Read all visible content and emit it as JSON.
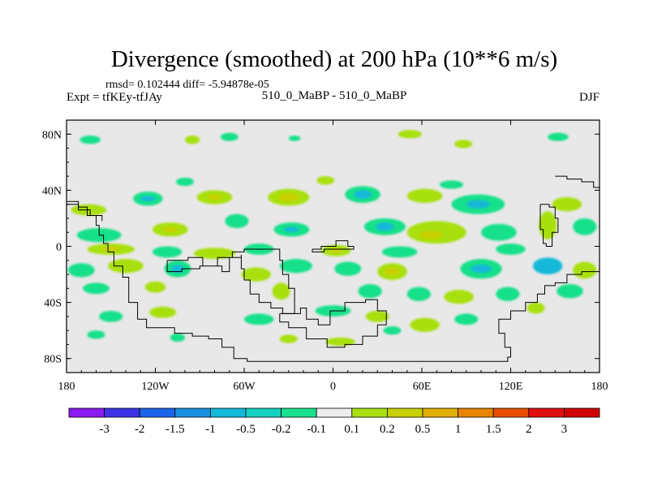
{
  "chart_data": {
    "type": "heatmap",
    "title": "Divergence (smoothed) at 200 hPa (10**6 m/s)",
    "stats_line": "rmsd= 0.102444  diff= -5.94878e-05",
    "left_label": "Expt = tfKEy-tfJAy",
    "center_label": "510_0_MaBP - 510_0_MaBP",
    "right_label": "DJF",
    "xlim": [
      -180,
      180
    ],
    "ylim": [
      -90,
      90
    ],
    "x_ticks": [
      {
        "value": -180,
        "label": "180"
      },
      {
        "value": -120,
        "label": "120W"
      },
      {
        "value": -60,
        "label": "60W"
      },
      {
        "value": 0,
        "label": "0"
      },
      {
        "value": 60,
        "label": "60E"
      },
      {
        "value": 120,
        "label": "120E"
      },
      {
        "value": 180,
        "label": "180"
      }
    ],
    "y_ticks": [
      {
        "value": 80,
        "label": "80N"
      },
      {
        "value": 40,
        "label": "40N"
      },
      {
        "value": 0,
        "label": "0"
      },
      {
        "value": -40,
        "label": "40S"
      },
      {
        "value": -80,
        "label": "80S"
      }
    ],
    "colorbar": {
      "levels": [
        "-3",
        "-2",
        "-1.5",
        "-1",
        "-0.5",
        "-0.2",
        "-0.1",
        "0.1",
        "0.2",
        "0.5",
        "1",
        "1.5",
        "2",
        "3"
      ],
      "colors": [
        "#8a1cf0",
        "#3c33e6",
        "#1a64e8",
        "#1a90e0",
        "#13b8da",
        "#17d0c0",
        "#19e08a",
        "#ececec",
        "#a8e010",
        "#c8d000",
        "#e0b000",
        "#e88400",
        "#e85000",
        "#e01010",
        "#d00000"
      ]
    },
    "field": {
      "background_color": "#e8e8e8",
      "blobs": [
        {
          "lon": -164,
          "lat": 76,
          "rx": 7,
          "ry": 3,
          "color": "#19e08a"
        },
        {
          "lon": -95,
          "lat": 76,
          "rx": 5,
          "ry": 3,
          "color": "#a8e010"
        },
        {
          "lon": -70,
          "lat": 78,
          "rx": 6,
          "ry": 3,
          "color": "#19e08a"
        },
        {
          "lon": -26,
          "lat": 77,
          "rx": 4,
          "ry": 2,
          "color": "#19e08a"
        },
        {
          "lon": 52,
          "lat": 80,
          "rx": 8,
          "ry": 3,
          "color": "#a8e010"
        },
        {
          "lon": 88,
          "lat": 73,
          "rx": 6,
          "ry": 3,
          "color": "#a8e010"
        },
        {
          "lon": 152,
          "lat": 78,
          "rx": 7,
          "ry": 3,
          "color": "#19e08a"
        },
        {
          "lon": -100,
          "lat": 46,
          "rx": 6,
          "ry": 3,
          "color": "#19e08a"
        },
        {
          "lon": -5,
          "lat": 47,
          "rx": 6,
          "ry": 3,
          "color": "#a8e010"
        },
        {
          "lon": 80,
          "lat": 44,
          "rx": 8,
          "ry": 3,
          "color": "#19e08a"
        },
        {
          "lon": -165,
          "lat": 26,
          "rx": 12,
          "ry": 4,
          "color": "#a8e010"
        },
        {
          "lon": -125,
          "lat": 34,
          "rx": 10,
          "ry": 5,
          "color": "#19e08a"
        },
        {
          "lon": -125,
          "lat": 34,
          "rx": 5,
          "ry": 2,
          "color": "#13b8da"
        },
        {
          "lon": -80,
          "lat": 35,
          "rx": 12,
          "ry": 5,
          "color": "#a8e010"
        },
        {
          "lon": -80,
          "lat": 35,
          "rx": 5,
          "ry": 2,
          "color": "#c8d000"
        },
        {
          "lon": -30,
          "lat": 35,
          "rx": 14,
          "ry": 6,
          "color": "#a8e010"
        },
        {
          "lon": -30,
          "lat": 35,
          "rx": 7,
          "ry": 3,
          "color": "#c8d000"
        },
        {
          "lon": 20,
          "lat": 37,
          "rx": 12,
          "ry": 6,
          "color": "#19e08a"
        },
        {
          "lon": 20,
          "lat": 37,
          "rx": 6,
          "ry": 3,
          "color": "#13b8da"
        },
        {
          "lon": 62,
          "lat": 36,
          "rx": 12,
          "ry": 5,
          "color": "#a8e010"
        },
        {
          "lon": 98,
          "lat": 30,
          "rx": 18,
          "ry": 7,
          "color": "#19e08a"
        },
        {
          "lon": 98,
          "lat": 30,
          "rx": 8,
          "ry": 3,
          "color": "#13b8da"
        },
        {
          "lon": 158,
          "lat": 30,
          "rx": 10,
          "ry": 5,
          "color": "#a8e010"
        },
        {
          "lon": -158,
          "lat": 8,
          "rx": 15,
          "ry": 5,
          "color": "#19e08a"
        },
        {
          "lon": -110,
          "lat": 12,
          "rx": 12,
          "ry": 5,
          "color": "#a8e010"
        },
        {
          "lon": -110,
          "lat": 12,
          "rx": 5,
          "ry": 2,
          "color": "#c8d000"
        },
        {
          "lon": -65,
          "lat": 18,
          "rx": 8,
          "ry": 5,
          "color": "#19e08a"
        },
        {
          "lon": -28,
          "lat": 12,
          "rx": 12,
          "ry": 5,
          "color": "#19e08a"
        },
        {
          "lon": -28,
          "lat": 12,
          "rx": 5,
          "ry": 2,
          "color": "#13b8da"
        },
        {
          "lon": 35,
          "lat": 14,
          "rx": 14,
          "ry": 6,
          "color": "#19e08a"
        },
        {
          "lon": 35,
          "lat": 14,
          "rx": 6,
          "ry": 3,
          "color": "#13b8da"
        },
        {
          "lon": 70,
          "lat": 10,
          "rx": 20,
          "ry": 8,
          "color": "#a8e010"
        },
        {
          "lon": 66,
          "lat": 8,
          "rx": 8,
          "ry": 3,
          "color": "#c8d000"
        },
        {
          "lon": 112,
          "lat": 10,
          "rx": 12,
          "ry": 6,
          "color": "#19e08a"
        },
        {
          "lon": 145,
          "lat": 15,
          "rx": 6,
          "ry": 10,
          "color": "#a8e010"
        },
        {
          "lon": 170,
          "lat": 14,
          "rx": 8,
          "ry": 6,
          "color": "#19e08a"
        },
        {
          "lon": -150,
          "lat": -2,
          "rx": 16,
          "ry": 4,
          "color": "#a8e010"
        },
        {
          "lon": -150,
          "lat": -2,
          "rx": 6,
          "ry": 2,
          "color": "#c8d000"
        },
        {
          "lon": -112,
          "lat": -4,
          "rx": 10,
          "ry": 4,
          "color": "#19e08a"
        },
        {
          "lon": -80,
          "lat": -5,
          "rx": 14,
          "ry": 4,
          "color": "#a8e010"
        },
        {
          "lon": -50,
          "lat": -2,
          "rx": 10,
          "ry": 4,
          "color": "#19e08a"
        },
        {
          "lon": 2,
          "lat": -3,
          "rx": 10,
          "ry": 4,
          "color": "#a8e010"
        },
        {
          "lon": 2,
          "lat": -3,
          "rx": 4,
          "ry": 2,
          "color": "#c8d000"
        },
        {
          "lon": 45,
          "lat": -4,
          "rx": 12,
          "ry": 4,
          "color": "#19e08a"
        },
        {
          "lon": 120,
          "lat": -2,
          "rx": 10,
          "ry": 4,
          "color": "#19e08a"
        },
        {
          "lon": -170,
          "lat": -17,
          "rx": 9,
          "ry": 5,
          "color": "#19e08a"
        },
        {
          "lon": -140,
          "lat": -14,
          "rx": 12,
          "ry": 5,
          "color": "#a8e010"
        },
        {
          "lon": -105,
          "lat": -16,
          "rx": 9,
          "ry": 6,
          "color": "#19e08a"
        },
        {
          "lon": -105,
          "lat": -16,
          "rx": 4,
          "ry": 3,
          "color": "#13b8da"
        },
        {
          "lon": -52,
          "lat": -20,
          "rx": 10,
          "ry": 5,
          "color": "#a8e010"
        },
        {
          "lon": -25,
          "lat": -14,
          "rx": 11,
          "ry": 5,
          "color": "#19e08a"
        },
        {
          "lon": 10,
          "lat": -16,
          "rx": 9,
          "ry": 5,
          "color": "#19e08a"
        },
        {
          "lon": 40,
          "lat": -18,
          "rx": 10,
          "ry": 6,
          "color": "#a8e010"
        },
        {
          "lon": 40,
          "lat": -18,
          "rx": 5,
          "ry": 3,
          "color": "#c8d000"
        },
        {
          "lon": 100,
          "lat": -16,
          "rx": 14,
          "ry": 7,
          "color": "#19e08a"
        },
        {
          "lon": 100,
          "lat": -16,
          "rx": 7,
          "ry": 3,
          "color": "#13b8da"
        },
        {
          "lon": 145,
          "lat": -14,
          "rx": 10,
          "ry": 6,
          "color": "#13b8da"
        },
        {
          "lon": 170,
          "lat": -17,
          "rx": 8,
          "ry": 6,
          "color": "#a8e010"
        },
        {
          "lon": -160,
          "lat": -30,
          "rx": 9,
          "ry": 4,
          "color": "#19e08a"
        },
        {
          "lon": -120,
          "lat": -29,
          "rx": 7,
          "ry": 4,
          "color": "#a8e010"
        },
        {
          "lon": -35,
          "lat": -32,
          "rx": 6,
          "ry": 6,
          "color": "#a8e010"
        },
        {
          "lon": 25,
          "lat": -32,
          "rx": 8,
          "ry": 5,
          "color": "#19e08a"
        },
        {
          "lon": 58,
          "lat": -34,
          "rx": 8,
          "ry": 5,
          "color": "#19e08a"
        },
        {
          "lon": 85,
          "lat": -36,
          "rx": 10,
          "ry": 5,
          "color": "#a8e010"
        },
        {
          "lon": 118,
          "lat": -34,
          "rx": 8,
          "ry": 5,
          "color": "#19e08a"
        },
        {
          "lon": 160,
          "lat": -32,
          "rx": 9,
          "ry": 5,
          "color": "#19e08a"
        },
        {
          "lon": -150,
          "lat": -50,
          "rx": 8,
          "ry": 4,
          "color": "#19e08a"
        },
        {
          "lon": -115,
          "lat": -47,
          "rx": 9,
          "ry": 4,
          "color": "#a8e010"
        },
        {
          "lon": -50,
          "lat": -52,
          "rx": 10,
          "ry": 4,
          "color": "#19e08a"
        },
        {
          "lon": 0,
          "lat": -46,
          "rx": 12,
          "ry": 4,
          "color": "#19e08a"
        },
        {
          "lon": 30,
          "lat": -50,
          "rx": 8,
          "ry": 4,
          "color": "#a8e010"
        },
        {
          "lon": 62,
          "lat": -56,
          "rx": 10,
          "ry": 5,
          "color": "#a8e010"
        },
        {
          "lon": 90,
          "lat": -52,
          "rx": 8,
          "ry": 4,
          "color": "#19e08a"
        },
        {
          "lon": 137,
          "lat": -44,
          "rx": 6,
          "ry": 4,
          "color": "#a8e010"
        },
        {
          "lon": -160,
          "lat": -63,
          "rx": 6,
          "ry": 3,
          "color": "#19e08a"
        },
        {
          "lon": -105,
          "lat": -65,
          "rx": 5,
          "ry": 3,
          "color": "#19e08a"
        },
        {
          "lon": -30,
          "lat": -66,
          "rx": 6,
          "ry": 3,
          "color": "#a8e010"
        },
        {
          "lon": 5,
          "lat": -68,
          "rx": 10,
          "ry": 3,
          "color": "#a8e010"
        },
        {
          "lon": 40,
          "lat": -60,
          "rx": 6,
          "ry": 3,
          "color": "#19e08a"
        }
      ],
      "coastlines": [
        [
          [
            -180,
            32
          ],
          [
            -172,
            28
          ],
          [
            -166,
            22
          ],
          [
            -160,
            15
          ],
          [
            -158,
            8
          ],
          [
            -155,
            2
          ],
          [
            -152,
            -4
          ],
          [
            -148,
            -14
          ],
          [
            -142,
            -22
          ],
          [
            -138,
            -40
          ],
          [
            -132,
            -52
          ],
          [
            -126,
            -58
          ],
          [
            -117,
            -58
          ],
          [
            -107,
            -62
          ],
          [
            -95,
            -64
          ],
          [
            -84,
            -66
          ],
          [
            -75,
            -72
          ],
          [
            -67,
            -80
          ],
          [
            -58,
            -82
          ],
          [
            -40,
            -82
          ],
          [
            -20,
            -82
          ],
          [
            0,
            -82
          ],
          [
            20,
            -82
          ],
          [
            40,
            -82
          ],
          [
            60,
            -82
          ],
          [
            80,
            -82
          ],
          [
            110,
            -82
          ],
          [
            118,
            -79
          ],
          [
            120,
            -72
          ],
          [
            116,
            -62
          ],
          [
            112,
            -52
          ],
          [
            120,
            -46
          ],
          [
            130,
            -40
          ],
          [
            138,
            -34
          ],
          [
            143,
            -28
          ],
          [
            150,
            -26
          ],
          [
            158,
            -20
          ],
          [
            168,
            -18
          ],
          [
            180,
            -18
          ]
        ],
        [
          [
            -112,
            -10
          ],
          [
            -104,
            -10
          ],
          [
            -98,
            -8
          ],
          [
            -88,
            -14
          ],
          [
            -75,
            -18
          ],
          [
            -70,
            -8
          ],
          [
            -62,
            -6
          ],
          [
            -62,
            -16
          ],
          [
            -60,
            -24
          ],
          [
            -56,
            -34
          ],
          [
            -50,
            -40
          ],
          [
            -42,
            -44
          ],
          [
            -34,
            -48
          ],
          [
            -26,
            -44
          ],
          [
            -26,
            -30
          ],
          [
            -30,
            -20
          ],
          [
            -34,
            -10
          ],
          [
            -36,
            -2
          ],
          [
            -50,
            -2
          ],
          [
            -60,
            -4
          ],
          [
            -68,
            -8
          ],
          [
            -78,
            -14
          ],
          [
            -90,
            -16
          ],
          [
            -102,
            -18
          ],
          [
            -112,
            -14
          ],
          [
            -112,
            -10
          ]
        ],
        [
          [
            -36,
            -48
          ],
          [
            -22,
            -44
          ],
          [
            -18,
            -52
          ],
          [
            -10,
            -56
          ],
          [
            -2,
            -46
          ],
          [
            8,
            -40
          ],
          [
            22,
            -38
          ],
          [
            30,
            -46
          ],
          [
            36,
            -56
          ],
          [
            30,
            -64
          ],
          [
            20,
            -70
          ],
          [
            8,
            -72
          ],
          [
            -4,
            -66
          ],
          [
            -18,
            -58
          ],
          [
            -30,
            -54
          ],
          [
            -36,
            -48
          ]
        ],
        [
          [
            -14,
            -2
          ],
          [
            -8,
            0
          ],
          [
            2,
            4
          ],
          [
            10,
            0
          ],
          [
            14,
            -2
          ],
          [
            4,
            -2
          ],
          [
            -6,
            -4
          ],
          [
            -14,
            -2
          ]
        ],
        [
          [
            140,
            30
          ],
          [
            146,
            28
          ],
          [
            150,
            20
          ],
          [
            152,
            10
          ],
          [
            148,
            0
          ],
          [
            144,
            2
          ],
          [
            142,
            12
          ],
          [
            140,
            20
          ],
          [
            140,
            30
          ]
        ],
        [
          [
            150,
            50
          ],
          [
            158,
            48
          ],
          [
            168,
            46
          ],
          [
            176,
            42
          ],
          [
            180,
            40
          ]
        ],
        [
          [
            -180,
            30
          ],
          [
            -172,
            26
          ],
          [
            -164,
            22
          ],
          [
            -156,
            18
          ]
        ]
      ]
    }
  }
}
